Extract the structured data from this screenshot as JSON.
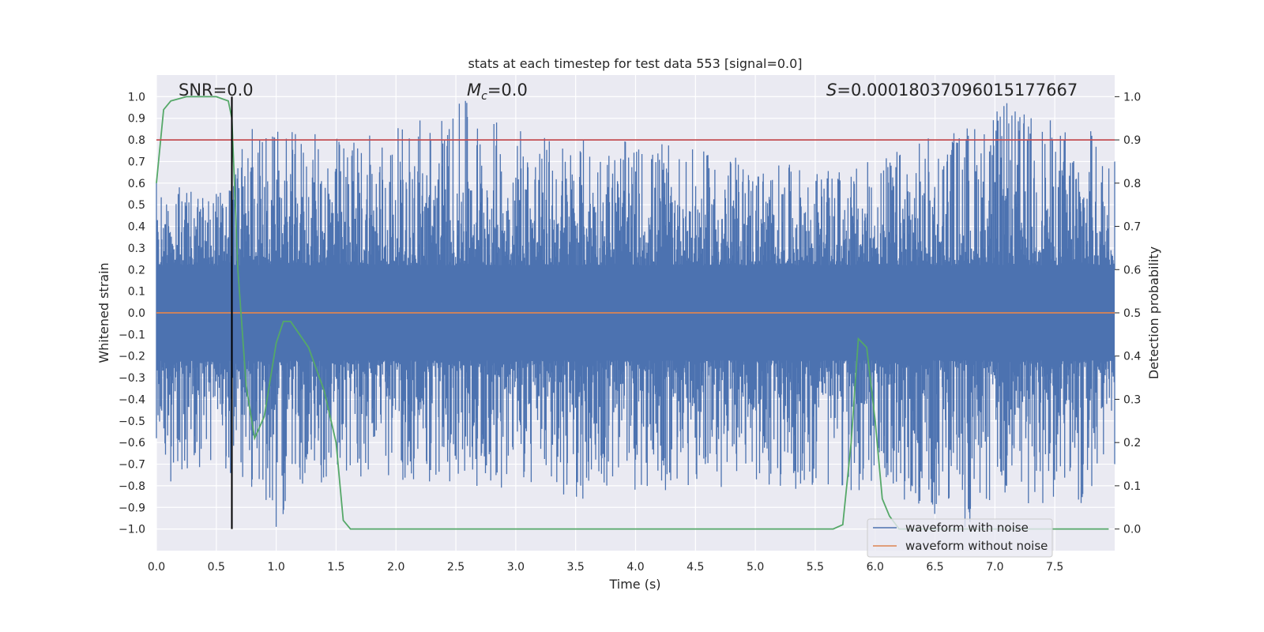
{
  "chart_data": {
    "type": "line",
    "title": "stats at each timestep for test data 553 [signal=0.0]",
    "xlabel": "Time (s)",
    "ylabel_left": "Whitened strain",
    "ylabel_right": "Detection probability",
    "xlim": [
      0.0,
      8.0
    ],
    "ylim_left": [
      -1.1,
      1.1
    ],
    "ylim_right": [
      -0.05,
      1.05
    ],
    "x_ticks": [
      "0.0",
      "0.5",
      "1.0",
      "1.5",
      "2.0",
      "2.5",
      "3.0",
      "3.5",
      "4.0",
      "4.5",
      "5.0",
      "5.5",
      "6.0",
      "6.5",
      "7.0",
      "7.5"
    ],
    "y_left_ticks": [
      "−1.0",
      "−0.9",
      "−0.8",
      "−0.7",
      "−0.6",
      "−0.5",
      "−0.4",
      "−0.3",
      "−0.2",
      "−0.1",
      "0.0",
      "0.1",
      "0.2",
      "0.3",
      "0.4",
      "0.5",
      "0.6",
      "0.7",
      "0.8",
      "0.9",
      "1.0"
    ],
    "y_right_ticks": [
      "0.0",
      "0.1",
      "0.2",
      "0.3",
      "0.4",
      "0.5",
      "0.6",
      "0.7",
      "0.8",
      "0.9",
      "1.0"
    ],
    "grid": true,
    "legend_position": "lower-right",
    "annotations": {
      "snr": "SNR=0.0",
      "mc_symbol": "M",
      "mc_sub": "c",
      "mc_value": "=0.0",
      "s_symbol": "S",
      "s_value": "=0.00018037096015177667"
    },
    "series": [
      {
        "name": "waveform with noise",
        "color": "#4c72b0",
        "axis": "left",
        "description_note": "dense noise trace",
        "envelope_upper": [
          [
            0.0,
            0.6
          ],
          [
            0.5,
            0.55
          ],
          [
            0.8,
            0.85
          ],
          [
            1.78,
            0.82
          ],
          [
            2.2,
            0.89
          ],
          [
            2.58,
            0.98
          ],
          [
            3.04,
            0.84
          ],
          [
            4.22,
            0.78
          ],
          [
            5.7,
            0.65
          ],
          [
            7.1,
            0.97
          ],
          [
            7.8,
            0.84
          ],
          [
            8.0,
            0.7
          ]
        ],
        "envelope_lower": [
          [
            0.0,
            -0.58
          ],
          [
            0.12,
            -0.78
          ],
          [
            0.58,
            -0.72
          ],
          [
            1.0,
            -0.99
          ],
          [
            1.22,
            -0.79
          ],
          [
            2.28,
            -0.78
          ],
          [
            3.4,
            -0.84
          ],
          [
            3.56,
            -0.86
          ],
          [
            4.25,
            -0.82
          ],
          [
            5.8,
            -0.82
          ],
          [
            6.75,
            -0.99
          ],
          [
            7.4,
            -0.88
          ],
          [
            7.72,
            -0.88
          ],
          [
            8.0,
            -0.7
          ]
        ]
      },
      {
        "name": "waveform without noise",
        "color": "#dd8452",
        "axis": "left",
        "x": [
          0.0,
          8.0
        ],
        "y": [
          0.0,
          0.0
        ]
      },
      {
        "name": "",
        "color": "#55a868",
        "axis": "right",
        "x": [
          0.0,
          0.06,
          0.12,
          0.25,
          0.5,
          0.6,
          0.63,
          0.68,
          0.75,
          0.82,
          0.9,
          1.0,
          1.06,
          1.12,
          1.27,
          1.4,
          1.5,
          1.56,
          1.62,
          5.65,
          5.73,
          5.8,
          5.86,
          5.93,
          6.0,
          6.06,
          6.12,
          6.2,
          7.95
        ],
        "y": [
          0.8,
          0.97,
          0.99,
          1.0,
          1.0,
          0.99,
          0.95,
          0.6,
          0.33,
          0.21,
          0.26,
          0.43,
          0.48,
          0.48,
          0.42,
          0.32,
          0.2,
          0.02,
          0.0,
          0.0,
          0.01,
          0.2,
          0.44,
          0.42,
          0.25,
          0.07,
          0.03,
          0.0,
          0.0
        ]
      },
      {
        "name": "",
        "color": "#c44e52",
        "axis": "right",
        "x": [
          0.0,
          8.0
        ],
        "y": [
          0.9,
          0.9
        ]
      },
      {
        "name": "",
        "color": "#000000",
        "axis": "left",
        "type": "vline",
        "x": [
          0.63,
          0.63
        ],
        "y": [
          -1.0,
          1.0
        ]
      }
    ],
    "legend": [
      "waveform with noise",
      "waveform without noise"
    ]
  }
}
